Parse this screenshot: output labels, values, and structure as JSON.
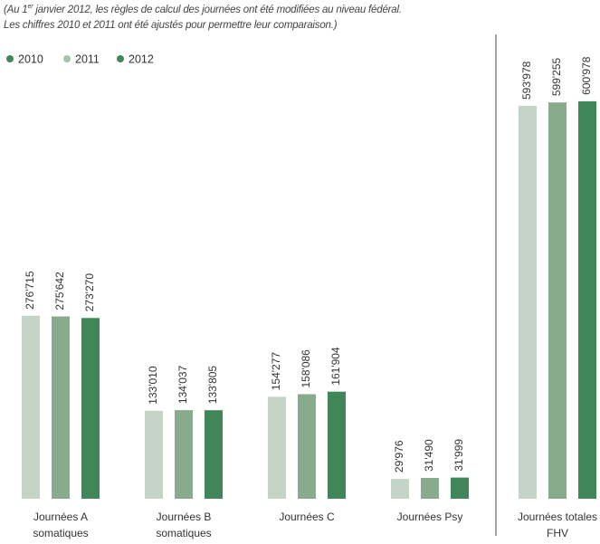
{
  "note": {
    "prefix": "(Au 1",
    "superscript": "er",
    "line1_rest": " janvier 2012, les règles de calcul des journées ont été modifiées au niveau fédéral.",
    "line2": "Les chiffres 2010 et 2011 ont été ajustés pour permettre leur comparaison.)"
  },
  "colors": {
    "2010": "#c4d5c7",
    "2011": "#88ab8d",
    "2012": "#3f8659"
  },
  "legend_dot_colors": {
    "2010": "#3f8659",
    "2011": "#a7c4ab",
    "2012": "#3f8659"
  },
  "chart_data": [
    {
      "type": "bar",
      "title": "",
      "xlabel": "",
      "ylabel": "",
      "legend_position": "top-left",
      "ylim": [
        0,
        620000
      ],
      "categories": [
        [
          "Journées A",
          "somatiques"
        ],
        [
          "Journées B",
          "somatiques"
        ],
        [
          "Journées C"
        ],
        [
          "Journées Psy"
        ]
      ],
      "series": [
        {
          "name": "2010",
          "values": [
            276715,
            133010,
            154277,
            29976
          ],
          "labels": [
            "276'715",
            "133'010",
            "154'277",
            "29'976"
          ]
        },
        {
          "name": "2011",
          "values": [
            275642,
            134037,
            158086,
            31490
          ],
          "labels": [
            "275'642",
            "134'037",
            "158'086",
            "31'490"
          ]
        },
        {
          "name": "2012",
          "values": [
            273270,
            133805,
            161904,
            31999
          ],
          "labels": [
            "273'270",
            "133'805",
            "161'904",
            "31'999"
          ]
        }
      ]
    },
    {
      "type": "bar",
      "title": "",
      "xlabel": "",
      "ylabel": "",
      "ylim": [
        0,
        620000
      ],
      "categories": [
        [
          "Journées totales",
          "FHV"
        ]
      ],
      "series": [
        {
          "name": "2010",
          "values": [
            593978
          ],
          "labels": [
            "593'978"
          ]
        },
        {
          "name": "2011",
          "values": [
            599255
          ],
          "labels": [
            "599'255"
          ]
        },
        {
          "name": "2012",
          "values": [
            600978
          ],
          "labels": [
            "600'978"
          ]
        }
      ]
    }
  ]
}
